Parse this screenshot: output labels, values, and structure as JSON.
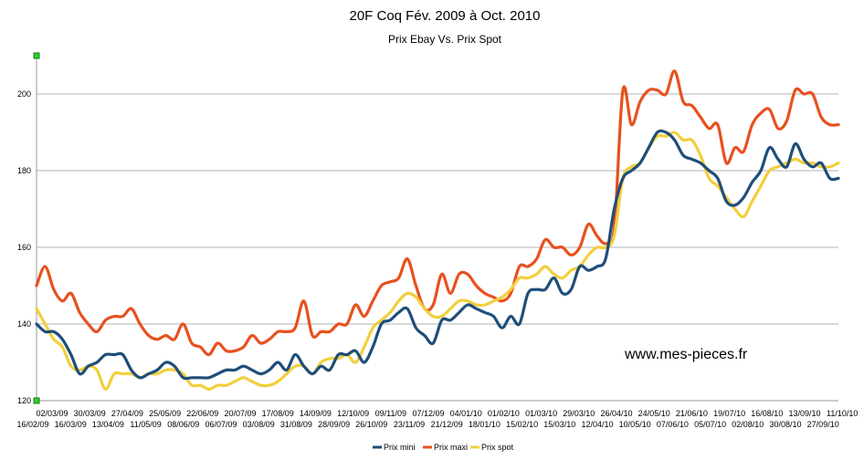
{
  "chart_data": {
    "type": "line",
    "title": "20F Coq Fév. 2009 à Oct. 2010",
    "subtitle": "Prix Ebay Vs. Prix Spot",
    "watermark": "www.mes-pieces.fr",
    "xlabel": "",
    "ylabel": "",
    "ylim": [
      120,
      210
    ],
    "yticks": [
      120,
      140,
      160,
      180,
      200
    ],
    "grid": true,
    "legend_position": "bottom-center",
    "x_ticks_top": [
      "02/03/09",
      "30/03/09",
      "27/04/09",
      "25/05/09",
      "22/06/09",
      "20/07/09",
      "17/08/09",
      "14/09/09",
      "12/10/09",
      "09/11/09",
      "07/12/09",
      "04/01/10",
      "01/02/10",
      "01/03/10",
      "29/03/10",
      "26/04/10",
      "24/05/10",
      "21/06/10",
      "19/07/10",
      "16/08/10",
      "13/09/10",
      "11/10/10"
    ],
    "x_ticks_bottom": [
      "16/02/09",
      "16/03/09",
      "13/04/09",
      "11/05/09",
      "08/06/09",
      "06/07/09",
      "03/08/09",
      "31/08/09",
      "28/09/09",
      "26/10/09",
      "23/11/09",
      "21/12/09",
      "18/01/10",
      "15/02/10",
      "15/03/10",
      "12/04/10",
      "10/05/10",
      "07/06/10",
      "05/07/10",
      "02/08/10",
      "30/08/10",
      "27/09/10"
    ],
    "series": [
      {
        "name": "Prix mini",
        "color": "#1f4e79",
        "values": [
          140,
          138,
          138,
          136,
          132,
          127,
          129,
          130,
          132,
          132,
          132,
          128,
          126,
          127,
          128,
          130,
          129,
          126,
          126,
          126,
          126,
          127,
          128,
          128,
          129,
          128,
          127,
          128,
          130,
          128,
          132,
          129,
          127,
          129,
          128,
          132,
          132,
          133,
          130,
          134,
          140,
          141,
          143,
          144,
          139,
          137,
          135,
          141,
          141,
          143,
          145,
          144,
          143,
          142,
          139,
          142,
          140,
          148,
          149,
          149,
          152,
          148,
          149,
          155,
          154,
          155,
          157,
          170,
          178,
          180,
          182,
          186,
          190,
          190,
          188,
          184,
          183,
          182,
          180,
          178,
          172,
          171,
          173,
          177,
          180,
          186,
          183,
          181,
          187,
          183,
          181,
          182,
          178,
          178
        ]
      },
      {
        "name": "Prix maxi",
        "color": "#e8501e",
        "values": [
          150,
          155,
          149,
          146,
          148,
          143,
          140,
          138,
          141,
          142,
          142,
          144,
          140,
          137,
          136,
          137,
          136,
          140,
          135,
          134,
          132,
          135,
          133,
          133,
          134,
          137,
          135,
          136,
          138,
          138,
          139,
          146,
          137,
          138,
          138,
          140,
          140,
          145,
          142,
          146,
          150,
          151,
          152,
          157,
          150,
          144,
          145,
          153,
          148,
          153,
          153,
          150,
          148,
          147,
          146,
          148,
          155,
          155,
          157,
          162,
          160,
          160,
          158,
          160,
          166,
          163,
          161,
          165,
          201,
          192,
          198,
          201,
          201,
          200,
          206,
          198,
          197,
          194,
          191,
          192,
          182,
          186,
          185,
          192,
          195,
          196,
          191,
          193,
          201,
          200,
          200,
          194,
          192,
          192
        ]
      },
      {
        "name": "Prix spot",
        "color": "#f2cf3c",
        "values": [
          144,
          140,
          136,
          134,
          129,
          128,
          129,
          128,
          123,
          127,
          127,
          127,
          126,
          127,
          127,
          128,
          128,
          127,
          124,
          124,
          123,
          124,
          124,
          125,
          126,
          125,
          124,
          124,
          125,
          127,
          129,
          129,
          127,
          130,
          131,
          131,
          132,
          130,
          134,
          139,
          141,
          143,
          146,
          148,
          147,
          144,
          142,
          142,
          144,
          146,
          146,
          145,
          145,
          146,
          147,
          149,
          152,
          152,
          153,
          155,
          153,
          152,
          154,
          155,
          158,
          160,
          160,
          163,
          178,
          181,
          182,
          186,
          189,
          189,
          190,
          188,
          188,
          184,
          178,
          176,
          173,
          170,
          168,
          172,
          176,
          180,
          181,
          182,
          183,
          182,
          182,
          181,
          181,
          182
        ]
      }
    ]
  }
}
